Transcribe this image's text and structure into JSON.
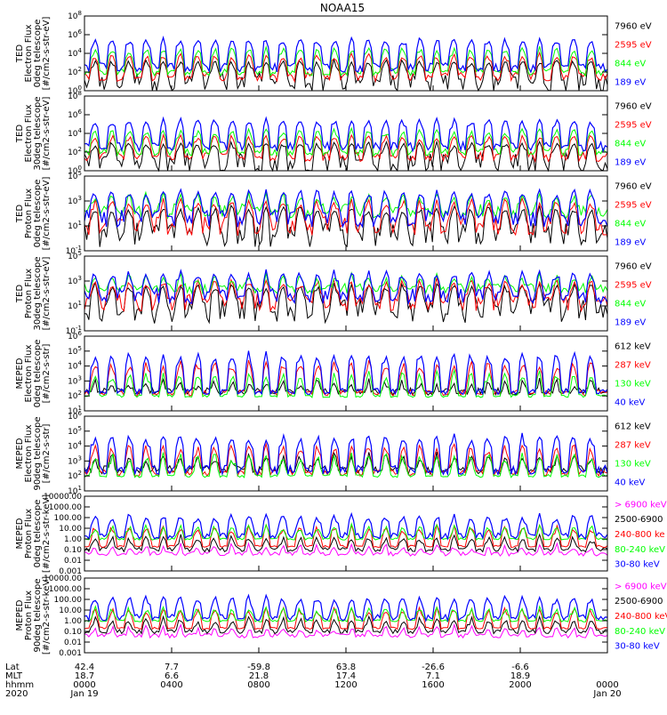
{
  "title": "NOAA15",
  "colors": {
    "black": "#000000",
    "red": "#ff0000",
    "green": "#00ff00",
    "blue": "#0000ff",
    "magenta": "#ff00ff",
    "axis": "#000000"
  },
  "chart_data": [
    {
      "id": "ted-e-0",
      "type": "line",
      "ylabel": [
        "TED",
        "Electron Flux",
        "0deg telescope",
        "[#/cm2-s-str-eV]"
      ],
      "yticks": [
        "10^0",
        "10^2",
        "10^4",
        "10^6",
        "10^8"
      ],
      "ylim_exp": [
        0,
        8
      ],
      "legend": [
        {
          "text": "7960 eV",
          "color": "#000000"
        },
        {
          "text": "2595 eV",
          "color": "#ff0000"
        },
        {
          "text": "844 eV",
          "color": "#00ff00"
        },
        {
          "text": "189 eV",
          "color": "#0000ff"
        }
      ],
      "series": [
        {
          "name": "7960 eV",
          "color": "#000000",
          "base": 0.8,
          "spread": 1.1,
          "peak": 3.2
        },
        {
          "name": "2595 eV",
          "color": "#ff0000",
          "base": 1.5,
          "spread": 0.5,
          "peak": 3.8
        },
        {
          "name": "844 eV",
          "color": "#00ff00",
          "base": 2.0,
          "spread": 0.4,
          "peak": 4.5
        },
        {
          "name": "189 eV",
          "color": "#0000ff",
          "base": 2.5,
          "spread": 0.5,
          "peak": 5.5
        }
      ]
    },
    {
      "id": "ted-e-30",
      "type": "line",
      "ylabel": [
        "TED",
        "Electron Flux",
        "30deg telescope",
        "[#/cm2-s-str-eV]"
      ],
      "yticks": [
        "10^0",
        "10^2",
        "10^4",
        "10^6",
        "10^8"
      ],
      "ylim_exp": [
        0,
        8
      ],
      "legend": [
        {
          "text": "7960 eV",
          "color": "#000000"
        },
        {
          "text": "2595 eV",
          "color": "#ff0000"
        },
        {
          "text": "844 eV",
          "color": "#00ff00"
        },
        {
          "text": "189 eV",
          "color": "#0000ff"
        }
      ],
      "series": [
        {
          "name": "7960 eV",
          "color": "#000000",
          "base": 0.8,
          "spread": 1.1,
          "peak": 3.0
        },
        {
          "name": "2595 eV",
          "color": "#ff0000",
          "base": 1.5,
          "spread": 0.5,
          "peak": 3.7
        },
        {
          "name": "844 eV",
          "color": "#00ff00",
          "base": 2.0,
          "spread": 0.4,
          "peak": 4.3
        },
        {
          "name": "189 eV",
          "color": "#0000ff",
          "base": 2.6,
          "spread": 0.5,
          "peak": 5.4
        }
      ]
    },
    {
      "id": "ted-p-0",
      "type": "line",
      "ylabel": [
        "TED",
        "Proton Flux",
        "0deg telescope",
        "[#/cm2-s-str-eV]"
      ],
      "yticks": [
        "10^-1",
        "10^1",
        "10^3",
        "10^5"
      ],
      "ylim_exp": [
        -1,
        5
      ],
      "legend": [
        {
          "text": "7960 eV",
          "color": "#000000"
        },
        {
          "text": "2595 eV",
          "color": "#ff0000"
        },
        {
          "text": "844 eV",
          "color": "#00ff00"
        },
        {
          "text": "189 eV",
          "color": "#0000ff"
        }
      ],
      "series": [
        {
          "name": "7960 eV",
          "color": "#000000",
          "base": 0.3,
          "spread": 1.0,
          "peak": 2.5
        },
        {
          "name": "2595 eV",
          "color": "#ff0000",
          "base": 1.0,
          "spread": 0.8,
          "peak": 3.0
        },
        {
          "name": "844 eV",
          "color": "#00ff00",
          "base": 2.2,
          "spread": 0.6,
          "peak": 3.5
        },
        {
          "name": "189 eV",
          "color": "#0000ff",
          "base": 1.6,
          "spread": 0.7,
          "peak": 3.8
        }
      ]
    },
    {
      "id": "ted-p-30",
      "type": "line",
      "ylabel": [
        "TED",
        "Proton Flux",
        "30deg telescope",
        "[#/cm2-s-str-eV]"
      ],
      "yticks": [
        "10^-1",
        "10^1",
        "10^3",
        "10^5"
      ],
      "ylim_exp": [
        -1,
        5
      ],
      "legend": [
        {
          "text": "7960 eV",
          "color": "#000000"
        },
        {
          "text": "2595 eV",
          "color": "#ff0000"
        },
        {
          "text": "844 eV",
          "color": "#00ff00"
        },
        {
          "text": "189 eV",
          "color": "#0000ff"
        }
      ],
      "series": [
        {
          "name": "7960 eV",
          "color": "#000000",
          "base": 0.6,
          "spread": 1.0,
          "peak": 2.7
        },
        {
          "name": "2595 eV",
          "color": "#ff0000",
          "base": 1.3,
          "spread": 0.7,
          "peak": 3.0
        },
        {
          "name": "844 eV",
          "color": "#00ff00",
          "base": 2.4,
          "spread": 0.4,
          "peak": 3.4
        },
        {
          "name": "189 eV",
          "color": "#0000ff",
          "base": 1.8,
          "spread": 0.6,
          "peak": 3.7
        }
      ]
    },
    {
      "id": "mep-e-0",
      "type": "line",
      "ylabel": [
        "MEPED",
        "Electron Flux",
        "0deg telescope",
        "[#/cm2-s-str]"
      ],
      "yticks": [
        "10^1",
        "10^2",
        "10^3",
        "10^4",
        "10^5",
        "10^6"
      ],
      "ylim_exp": [
        1,
        6
      ],
      "legend": [
        {
          "text": "612 keV",
          "color": "#000000"
        },
        {
          "text": "287 keV",
          "color": "#ff0000"
        },
        {
          "text": "130 keV",
          "color": "#00ff00"
        },
        {
          "text": "40 keV",
          "color": "#0000ff"
        }
      ],
      "series": [
        {
          "name": "612 keV",
          "color": "#000000",
          "base": 2.3,
          "spread": 0.25,
          "peak": 3.0
        },
        {
          "name": "287 keV",
          "color": "#ff0000",
          "base": 2.2,
          "spread": 0.2,
          "peak": 4.2
        },
        {
          "name": "130 keV",
          "color": "#00ff00",
          "base": 2.0,
          "spread": 0.1,
          "peak": 3.5
        },
        {
          "name": "40 keV",
          "color": "#0000ff",
          "base": 2.3,
          "spread": 0.2,
          "peak": 4.8
        }
      ]
    },
    {
      "id": "mep-e-90",
      "type": "line",
      "ylabel": [
        "MEPED",
        "Electron Flux",
        "90deg telescope",
        "[#/cm2-s-str]"
      ],
      "yticks": [
        "10^1",
        "10^2",
        "10^3",
        "10^4",
        "10^5",
        "10^6"
      ],
      "ylim_exp": [
        1,
        6
      ],
      "legend": [
        {
          "text": "612 keV",
          "color": "#000000"
        },
        {
          "text": "287 keV",
          "color": "#ff0000"
        },
        {
          "text": "130 keV",
          "color": "#00ff00"
        },
        {
          "text": "40 keV",
          "color": "#0000ff"
        }
      ],
      "series": [
        {
          "name": "612 keV",
          "color": "#000000",
          "base": 2.4,
          "spread": 0.3,
          "peak": 3.4
        },
        {
          "name": "287 keV",
          "color": "#ff0000",
          "base": 2.2,
          "spread": 0.2,
          "peak": 4.0
        },
        {
          "name": "130 keV",
          "color": "#00ff00",
          "base": 2.0,
          "spread": 0.1,
          "peak": 3.4
        },
        {
          "name": "40 keV",
          "color": "#0000ff",
          "base": 2.4,
          "spread": 0.3,
          "peak": 4.7
        }
      ]
    },
    {
      "id": "mep-p-0",
      "type": "scatter",
      "ylabel": [
        "MEPED",
        "Proton Flux",
        "0deg telescope",
        "[#/cm2-s-str-keV]"
      ],
      "yticks": [
        "0.001",
        "0.01",
        "0.10",
        "1.00",
        "10.00",
        "100.00",
        "1000.00",
        "10000.00"
      ],
      "ylim_exp": [
        -3,
        4
      ],
      "legend": [
        {
          "text": "> 6900 keV",
          "color": "#ff00ff"
        },
        {
          "text": "2500-6900",
          "color": "#000000"
        },
        {
          "text": "240-800 ke",
          "color": "#ff0000"
        },
        {
          "text": "80-240 keV",
          "color": "#00ff00"
        },
        {
          "text": "30-80 keV",
          "color": "#0000ff"
        }
      ],
      "series": [
        {
          "name": "> 6900 keV",
          "color": "#ff00ff",
          "base": -1.4,
          "spread": 0.2,
          "peak": -0.6
        },
        {
          "name": "2500-6900",
          "color": "#000000",
          "base": -1.0,
          "spread": 0.2,
          "peak": 0.2
        },
        {
          "name": "240-800 ke",
          "color": "#ff0000",
          "base": -0.7,
          "spread": 0.1,
          "peak": 1.1
        },
        {
          "name": "80-240 keV",
          "color": "#00ff00",
          "base": 0.0,
          "spread": 0.1,
          "peak": 1.2
        },
        {
          "name": "30-80 keV",
          "color": "#0000ff",
          "base": 0.3,
          "spread": 0.3,
          "peak": 2.2
        }
      ]
    },
    {
      "id": "mep-p-90",
      "type": "scatter",
      "ylabel": [
        "MEPED",
        "Proton Flux",
        "90deg telescope",
        "[#/cm2-s-str-keV]"
      ],
      "yticks": [
        "0.001",
        "0.01",
        "0.10",
        "1.00",
        "10.00",
        "100.00",
        "1000.00",
        "10000.00"
      ],
      "ylim_exp": [
        -3,
        4
      ],
      "legend": [
        {
          "text": "> 6900 keV",
          "color": "#ff00ff"
        },
        {
          "text": "2500-6900",
          "color": "#000000"
        },
        {
          "text": "240-800 keV",
          "color": "#ff0000"
        },
        {
          "text": "80-240 keV",
          "color": "#00ff00"
        },
        {
          "text": "30-80 keV",
          "color": "#0000ff"
        }
      ],
      "series": [
        {
          "name": "> 6900 keV",
          "color": "#ff00ff",
          "base": -1.4,
          "spread": 0.2,
          "peak": -0.6
        },
        {
          "name": "2500-6900",
          "color": "#000000",
          "base": -1.0,
          "spread": 0.2,
          "peak": 0.2
        },
        {
          "name": "240-800 keV",
          "color": "#ff0000",
          "base": -0.7,
          "spread": 0.1,
          "peak": 1.1
        },
        {
          "name": "80-240 keV",
          "color": "#00ff00",
          "base": 0.0,
          "spread": 0.1,
          "peak": 1.2
        },
        {
          "name": "30-80 keV",
          "color": "#0000ff",
          "base": 0.3,
          "spread": 0.3,
          "peak": 2.2
        }
      ]
    }
  ],
  "xaxis": {
    "row_labels": [
      "Lat",
      "MLT",
      "hhmm",
      "2020"
    ],
    "ticks": [
      {
        "lat": "42.4",
        "mlt": "18.7",
        "time": "0000",
        "date": "Jan 19"
      },
      {
        "lat": "7.7",
        "mlt": "6.6",
        "time": "0400",
        "date": ""
      },
      {
        "lat": "-59.8",
        "mlt": "21.8",
        "time": "0800",
        "date": ""
      },
      {
        "lat": "63.8",
        "mlt": "17.4",
        "time": "1200",
        "date": ""
      },
      {
        "lat": "-26.6",
        "mlt": "7.1",
        "time": "1600",
        "date": ""
      },
      {
        "lat": "-6.6",
        "mlt": "18.9",
        "time": "2000",
        "date": ""
      },
      {
        "lat": "",
        "mlt": "",
        "time": "0000",
        "date": "Jan 20"
      }
    ]
  }
}
